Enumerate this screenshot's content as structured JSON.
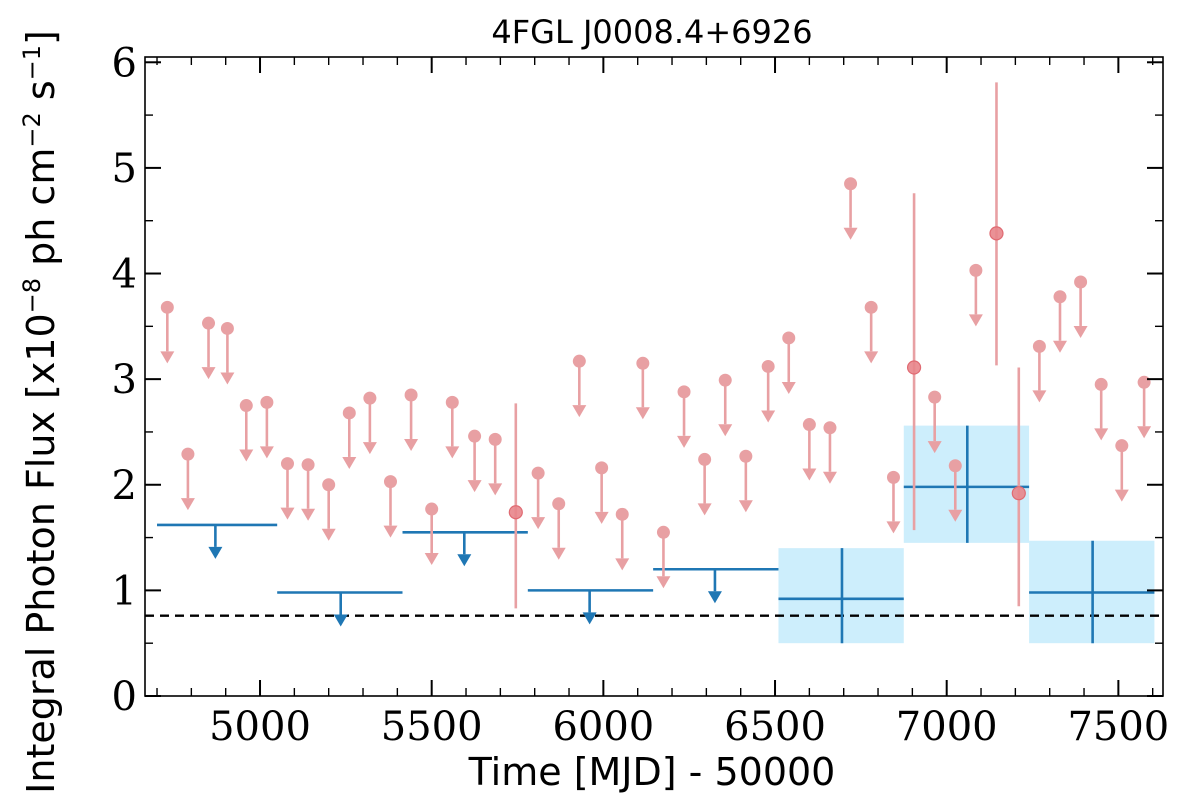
{
  "chart_data": {
    "type": "scatter",
    "title": "4FGL J0008.4+6926",
    "xlabel": "Time [MJD] - 50000",
    "ylabel_parts": [
      "Integral Photon Flux [x10",
      "−8",
      " ph cm",
      "−2",
      " s",
      "−1",
      "]"
    ],
    "xlim": [
      4665,
      7630
    ],
    "ylim": [
      0,
      6.05
    ],
    "x_ticks": [
      5000,
      5500,
      6000,
      6500,
      7000,
      7500
    ],
    "x_tick_labels": [
      "5000",
      "5500",
      "6000",
      "6500",
      "7000",
      "7500"
    ],
    "y_ticks": [
      0,
      1,
      2,
      3,
      4,
      5,
      6
    ],
    "y_tick_labels": [
      "0",
      "1",
      "2",
      "3",
      "4",
      "5",
      "6"
    ],
    "reference_line": {
      "y": 0.76,
      "style": "dashed",
      "color": "#000000"
    },
    "colors": {
      "fine_bins": "#e8a0a3",
      "fine_detection": "#e8858b",
      "coarse_bins": "#1f77b4",
      "coarse_error_box": "#cdeefc"
    },
    "fine_upper_limits": [
      {
        "x": 4730,
        "y": 3.68
      },
      {
        "x": 4790,
        "y": 2.29
      },
      {
        "x": 4850,
        "y": 3.53
      },
      {
        "x": 4905,
        "y": 3.48
      },
      {
        "x": 4960,
        "y": 2.75
      },
      {
        "x": 5020,
        "y": 2.78
      },
      {
        "x": 5080,
        "y": 2.2
      },
      {
        "x": 5140,
        "y": 2.19
      },
      {
        "x": 5200,
        "y": 2.0
      },
      {
        "x": 5260,
        "y": 2.68
      },
      {
        "x": 5320,
        "y": 2.82
      },
      {
        "x": 5380,
        "y": 2.03
      },
      {
        "x": 5440,
        "y": 2.85
      },
      {
        "x": 5500,
        "y": 1.77
      },
      {
        "x": 5560,
        "y": 2.78
      },
      {
        "x": 5625,
        "y": 2.46
      },
      {
        "x": 5685,
        "y": 2.43
      },
      {
        "x": 5810,
        "y": 2.11
      },
      {
        "x": 5870,
        "y": 1.82
      },
      {
        "x": 5930,
        "y": 3.17
      },
      {
        "x": 5995,
        "y": 2.16
      },
      {
        "x": 6055,
        "y": 1.72
      },
      {
        "x": 6115,
        "y": 3.15
      },
      {
        "x": 6175,
        "y": 1.55
      },
      {
        "x": 6235,
        "y": 2.88
      },
      {
        "x": 6295,
        "y": 2.24
      },
      {
        "x": 6355,
        "y": 2.99
      },
      {
        "x": 6415,
        "y": 2.27
      },
      {
        "x": 6480,
        "y": 3.12
      },
      {
        "x": 6540,
        "y": 3.39
      },
      {
        "x": 6600,
        "y": 2.57
      },
      {
        "x": 6660,
        "y": 2.54
      },
      {
        "x": 6720,
        "y": 4.85
      },
      {
        "x": 6780,
        "y": 3.68
      },
      {
        "x": 6845,
        "y": 2.07
      },
      {
        "x": 6965,
        "y": 2.83
      },
      {
        "x": 7025,
        "y": 2.18
      },
      {
        "x": 7085,
        "y": 4.03
      },
      {
        "x": 7270,
        "y": 3.31
      },
      {
        "x": 7330,
        "y": 3.78
      },
      {
        "x": 7390,
        "y": 3.92
      },
      {
        "x": 7450,
        "y": 2.95
      },
      {
        "x": 7510,
        "y": 2.37
      },
      {
        "x": 7575,
        "y": 2.97
      }
    ],
    "fine_detections": [
      {
        "x": 5745,
        "y": 1.74,
        "y_low": 0.83,
        "y_high": 2.77
      },
      {
        "x": 6905,
        "y": 3.11,
        "y_low": 1.57,
        "y_high": 4.76
      },
      {
        "x": 7145,
        "y": 4.38,
        "y_low": 3.13,
        "y_high": 5.81
      },
      {
        "x": 7210,
        "y": 1.92,
        "y_low": 0.85,
        "y_high": 3.11
      }
    ],
    "coarse_upper_limits": [
      {
        "x": 4870,
        "x_low": 4700,
        "x_high": 5050,
        "y": 1.62
      },
      {
        "x": 5235,
        "x_low": 5050,
        "x_high": 5415,
        "y": 0.98
      },
      {
        "x": 5595,
        "x_low": 5415,
        "x_high": 5780,
        "y": 1.55
      },
      {
        "x": 5960,
        "x_low": 5780,
        "x_high": 6145,
        "y": 1.0
      },
      {
        "x": 6325,
        "x_low": 6145,
        "x_high": 6510,
        "y": 1.2
      }
    ],
    "coarse_detections": [
      {
        "x": 6695,
        "x_low": 6510,
        "x_high": 6875,
        "y": 0.92,
        "y_low": 0.5,
        "y_high": 1.4
      },
      {
        "x": 7060,
        "x_low": 6875,
        "x_high": 7240,
        "y": 1.98,
        "y_low": 1.45,
        "y_high": 2.56
      },
      {
        "x": 7425,
        "x_low": 7240,
        "x_high": 7605,
        "y": 0.98,
        "y_low": 0.5,
        "y_high": 1.47
      }
    ]
  }
}
